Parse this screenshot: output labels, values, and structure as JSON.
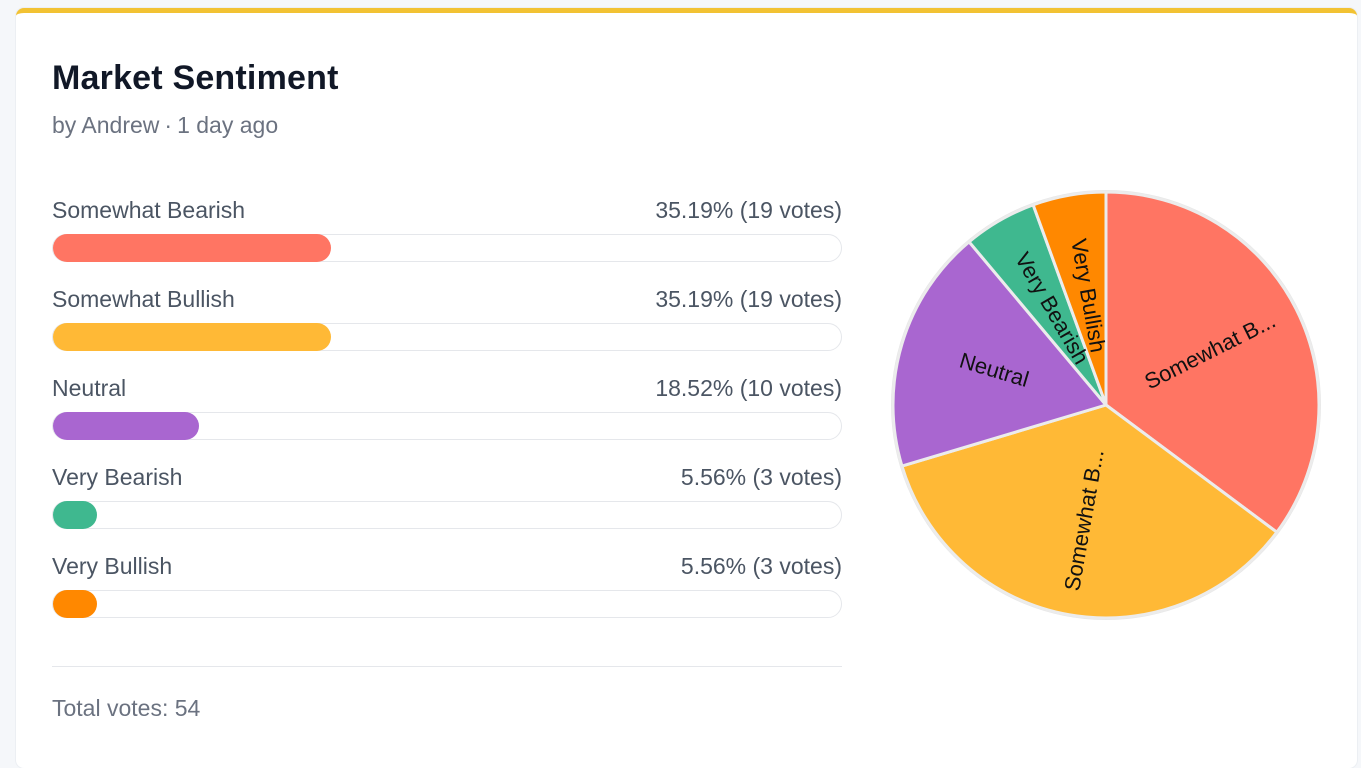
{
  "poll": {
    "title": "Market Sentiment",
    "author": "by Andrew",
    "separator": "·",
    "time": "1 day ago",
    "total_label": "Total votes: 54",
    "accent_color": "#f2c233"
  },
  "options": [
    {
      "label": "Somewhat Bearish",
      "stat": "35.19% (19 votes)",
      "percent": 35.19,
      "votes": 19,
      "color": "#ff7563"
    },
    {
      "label": "Somewhat Bullish",
      "stat": "35.19% (19 votes)",
      "percent": 35.19,
      "votes": 19,
      "color": "#ffb936"
    },
    {
      "label": "Neutral",
      "stat": "18.52% (10 votes)",
      "percent": 18.52,
      "votes": 10,
      "color": "#a966d0"
    },
    {
      "label": "Very Bearish",
      "stat": "5.56% (3 votes)",
      "percent": 5.56,
      "votes": 3,
      "color": "#3fb88f"
    },
    {
      "label": "Very Bullish",
      "stat": "5.56% (3 votes)",
      "percent": 5.56,
      "votes": 3,
      "color": "#ff8800"
    }
  ],
  "chart_data": {
    "type": "pie",
    "categories": [
      "Somewhat Bearish",
      "Somewhat Bullish",
      "Neutral",
      "Very Bearish",
      "Very Bullish"
    ],
    "values": [
      19,
      19,
      10,
      3,
      3
    ],
    "slice_labels": [
      "Somewhat B...",
      "Somewhat B...",
      "Neutral",
      "Very Bearish",
      "Very Bullish"
    ],
    "colors": [
      "#ff7563",
      "#ffb936",
      "#a966d0",
      "#3fb88f",
      "#ff8800"
    ]
  }
}
